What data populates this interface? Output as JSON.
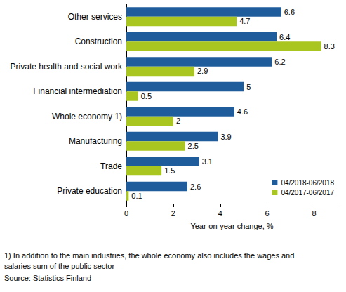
{
  "chart_data": {
    "type": "bar",
    "orientation": "horizontal",
    "categories": [
      "Other services",
      "Construction",
      "Private health and social work",
      "Financial intermediation",
      "Whole economy 1)",
      "Manufacturing",
      "Trade",
      "Private education"
    ],
    "series": [
      {
        "name": "04/2018-06/2018",
        "color": "#1f5c9c",
        "values": [
          6.6,
          6.4,
          6.2,
          5.0,
          4.6,
          3.9,
          3.1,
          2.6
        ]
      },
      {
        "name": "04/2017-06/2017",
        "color": "#a9c520",
        "values": [
          4.7,
          8.3,
          2.9,
          0.5,
          2.0,
          2.5,
          1.5,
          0.1
        ]
      }
    ],
    "x_label": "Year-on-year change, %",
    "xlim": [
      0,
      9
    ],
    "xticks": [
      0,
      2,
      4,
      6,
      8
    ],
    "grid": false,
    "legend": "lower right",
    "data_labels": true,
    "footnote": [
      "1) In addition to the main industries, the whole economy also includes the wages and",
      "salaries sum of the public sector"
    ],
    "source": "Source: Statistics Finland"
  }
}
